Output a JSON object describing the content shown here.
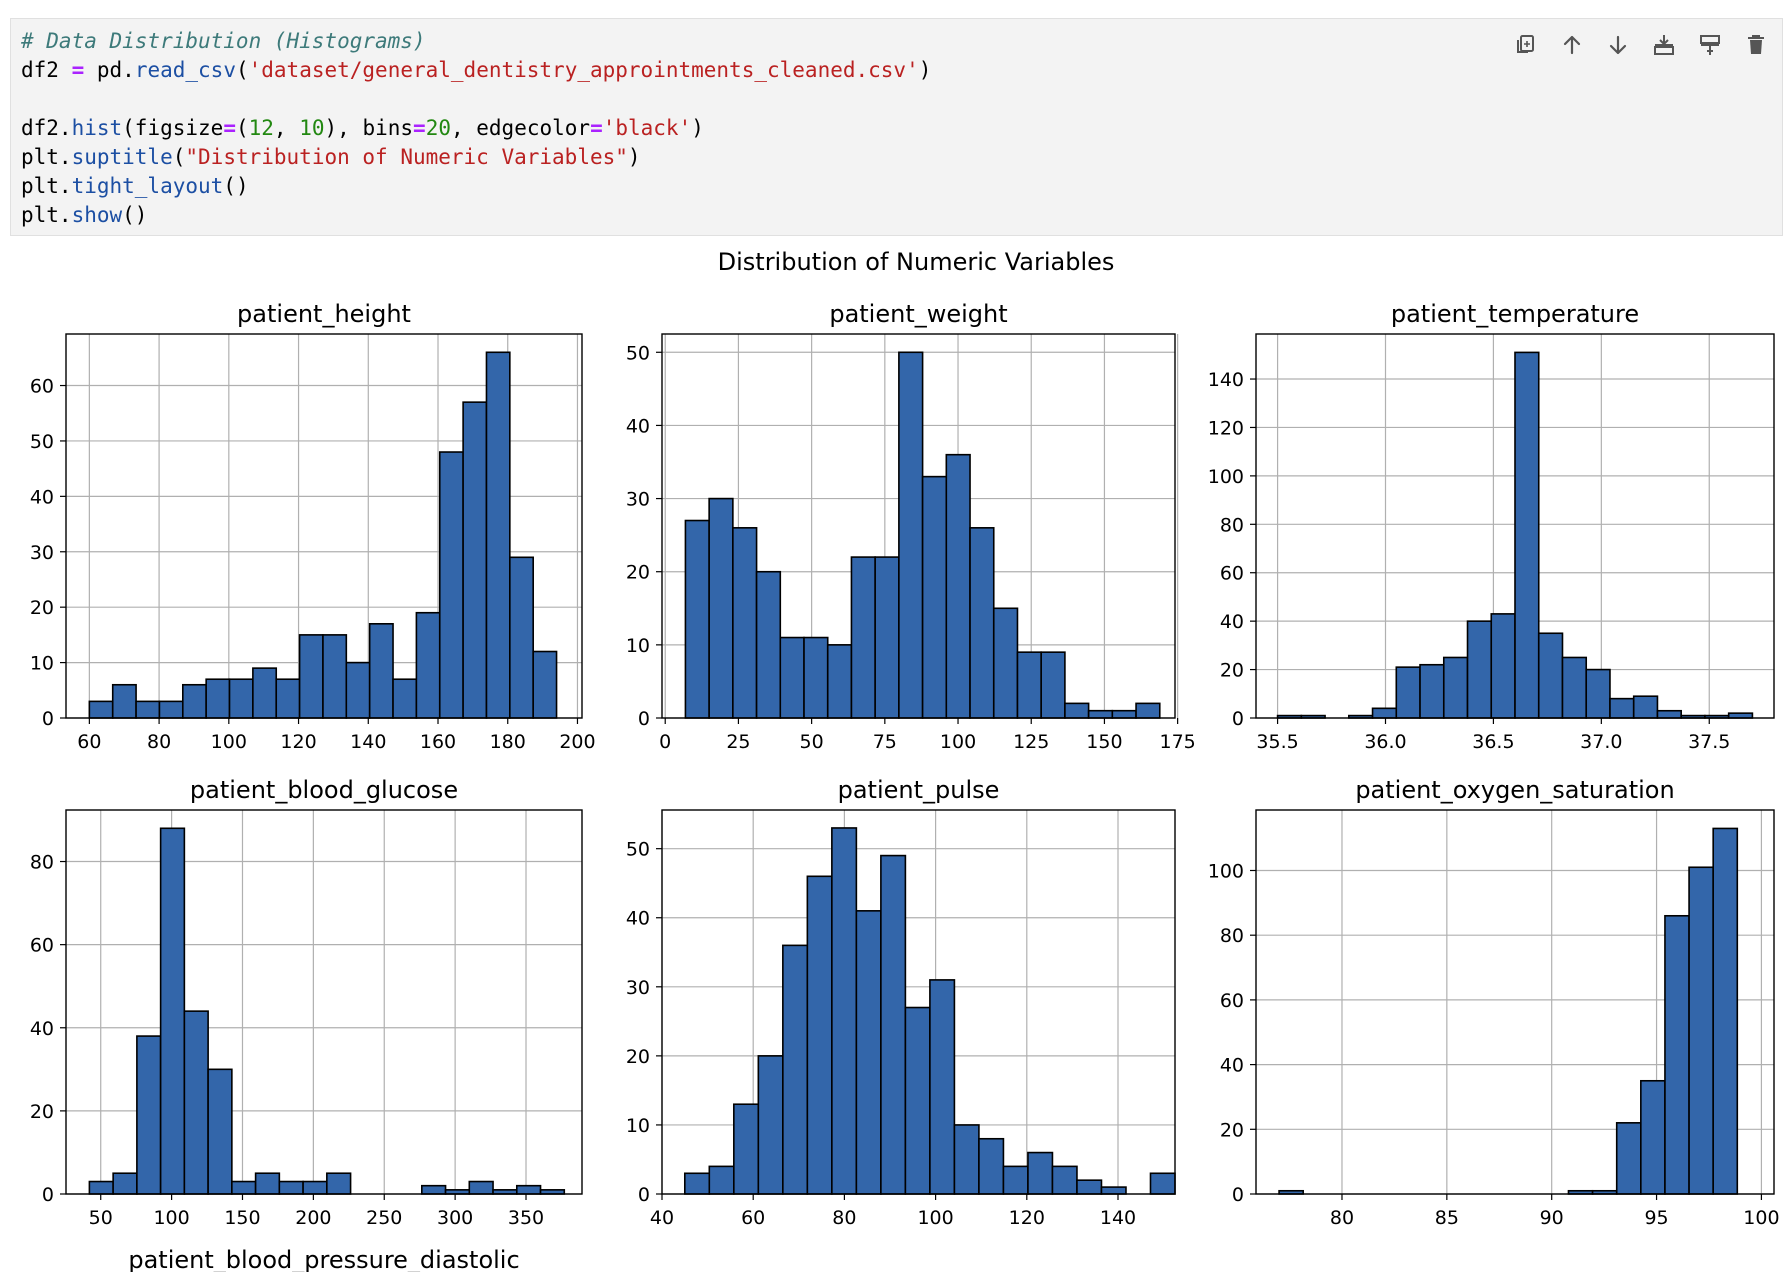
{
  "cell": {
    "code_lines": [
      [
        {
          "t": "cm",
          "v": "# Data Distribution (Histograms)"
        }
      ],
      [
        {
          "t": "",
          "v": "df2 "
        },
        {
          "t": "op",
          "v": "="
        },
        {
          "t": "",
          "v": " pd."
        },
        {
          "t": "fn",
          "v": "read_csv"
        },
        {
          "t": "",
          "v": "("
        },
        {
          "t": "str",
          "v": "'dataset/general_dentistry_approintments_cleaned.csv'"
        },
        {
          "t": "",
          "v": ")"
        }
      ],
      [],
      [
        {
          "t": "",
          "v": "df2."
        },
        {
          "t": "fn",
          "v": "hist"
        },
        {
          "t": "",
          "v": "(figsize"
        },
        {
          "t": "op",
          "v": "="
        },
        {
          "t": "",
          "v": "("
        },
        {
          "t": "num",
          "v": "12"
        },
        {
          "t": "",
          "v": ", "
        },
        {
          "t": "num",
          "v": "10"
        },
        {
          "t": "",
          "v": "), bins"
        },
        {
          "t": "op",
          "v": "="
        },
        {
          "t": "num",
          "v": "20"
        },
        {
          "t": "",
          "v": ", edgecolor"
        },
        {
          "t": "op",
          "v": "="
        },
        {
          "t": "str",
          "v": "'black'"
        },
        {
          "t": "",
          "v": ")"
        }
      ],
      [
        {
          "t": "",
          "v": "plt."
        },
        {
          "t": "fn",
          "v": "suptitle"
        },
        {
          "t": "",
          "v": "("
        },
        {
          "t": "str",
          "v": "\"Distribution of Numeric Variables\""
        },
        {
          "t": "",
          "v": ")"
        }
      ],
      [
        {
          "t": "",
          "v": "plt."
        },
        {
          "t": "fn",
          "v": "tight_layout"
        },
        {
          "t": "",
          "v": "()"
        }
      ],
      [
        {
          "t": "",
          "v": "plt."
        },
        {
          "t": "fn",
          "v": "show"
        },
        {
          "t": "",
          "v": "()"
        }
      ]
    ],
    "toolbar": [
      {
        "name": "duplicate-cell-button",
        "icon": "duplicate-icon"
      },
      {
        "name": "move-up-button",
        "icon": "arrow-up-icon"
      },
      {
        "name": "move-down-button",
        "icon": "arrow-down-icon"
      },
      {
        "name": "insert-below-button",
        "icon": "insert-below-icon"
      },
      {
        "name": "insert-above-button",
        "icon": "insert-above-icon"
      },
      {
        "name": "delete-cell-button",
        "icon": "trash-icon"
      }
    ]
  },
  "colors": {
    "bar": "#3366aa",
    "edge": "#000000",
    "grid": "#b0b0b0"
  },
  "chart_data": {
    "suptitle": "Distribution of Numeric Variables",
    "bottom_label": "patient_blood_pressure_diastolic",
    "subplots": [
      {
        "type": "bar",
        "title": "patient_height",
        "xlim": [
          53.3,
          201.3
        ],
        "ylim": [
          0,
          69.3
        ],
        "xticks": [
          60,
          80,
          100,
          120,
          140,
          160,
          180,
          200
        ],
        "yticks": [
          0,
          10,
          20,
          30,
          40,
          50,
          60
        ],
        "bin_start": 60,
        "bin_width": 6.7,
        "values": [
          3,
          6,
          3,
          3,
          6,
          7,
          7,
          9,
          7,
          15,
          15,
          10,
          17,
          7,
          19,
          48,
          57,
          66,
          29,
          12
        ]
      },
      {
        "type": "bar",
        "title": "patient_weight",
        "xlim": [
          -1.1,
          174.1
        ],
        "ylim": [
          0,
          52.5
        ],
        "xticks": [
          0,
          25,
          50,
          75,
          100,
          125,
          150,
          175
        ],
        "yticks": [
          0,
          10,
          20,
          30,
          40,
          50
        ],
        "bin_start": 6.9,
        "bin_width": 8.1,
        "values": [
          27,
          30,
          26,
          20,
          11,
          11,
          10,
          22,
          22,
          50,
          33,
          36,
          26,
          15,
          9,
          9,
          2,
          1,
          1,
          2
        ]
      },
      {
        "type": "bar",
        "title": "patient_temperature",
        "xlim": [
          35.4,
          37.8
        ],
        "ylim": [
          0,
          158.6
        ],
        "xticks": [
          35.5,
          36.0,
          36.5,
          37.0,
          37.5
        ],
        "ytick_labels": [
          "35.5",
          "36.0",
          "36.5",
          "37.0",
          "37.5"
        ],
        "yticks": [
          0,
          20,
          40,
          60,
          80,
          100,
          120,
          140
        ],
        "bin_start": 35.5,
        "bin_width": 0.11,
        "values": [
          1,
          1,
          0,
          1,
          4,
          21,
          22,
          25,
          40,
          43,
          151,
          35,
          25,
          20,
          8,
          9,
          3,
          1,
          1,
          2
        ]
      },
      {
        "type": "bar",
        "title": "patient_blood_glucose",
        "xlim": [
          25.5,
          389.5
        ],
        "ylim": [
          0,
          92.4
        ],
        "xticks": [
          50,
          100,
          150,
          200,
          250,
          300,
          350
        ],
        "yticks": [
          0,
          20,
          40,
          60,
          80
        ],
        "bin_start": 42,
        "bin_width": 16.75,
        "values": [
          3,
          5,
          38,
          88,
          44,
          30,
          3,
          5,
          3,
          3,
          5,
          0,
          0,
          0,
          2,
          1,
          3,
          1,
          2,
          1
        ]
      },
      {
        "type": "bar",
        "title": "patient_pulse",
        "xlim": [
          40,
          152.5
        ],
        "ylim": [
          0,
          55.6
        ],
        "xticks": [
          40,
          60,
          80,
          100,
          120,
          140
        ],
        "yticks": [
          0,
          10,
          20,
          30,
          40,
          50
        ],
        "bin_start": 45,
        "bin_width": 5.375,
        "values": [
          3,
          4,
          13,
          20,
          36,
          46,
          53,
          41,
          49,
          27,
          31,
          10,
          8,
          4,
          6,
          4,
          2,
          1,
          0,
          3
        ]
      },
      {
        "type": "bar",
        "title": "patient_oxygen_saturation",
        "xlim": [
          75.9,
          100.6
        ],
        "ylim": [
          0,
          118.7
        ],
        "xticks": [
          80,
          85,
          90,
          95,
          100
        ],
        "yticks": [
          0,
          20,
          40,
          60,
          80,
          100
        ],
        "bin_start": 77,
        "bin_width": 1.15,
        "values": [
          1,
          0,
          0,
          0,
          0,
          0,
          0,
          0,
          0,
          0,
          0,
          0,
          1,
          1,
          22,
          35,
          86,
          101,
          113,
          0
        ]
      }
    ]
  }
}
